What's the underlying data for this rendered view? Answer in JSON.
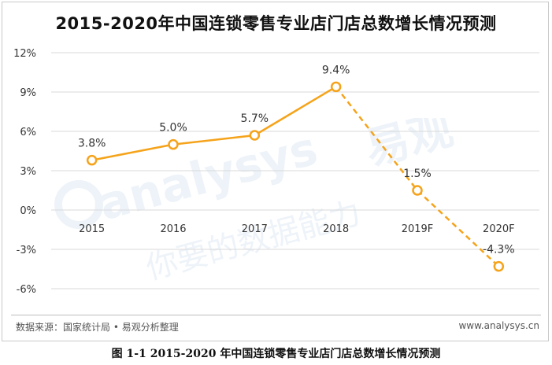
{
  "title": "2015-2020年中国连锁零售专业店门店总数增长情况预测",
  "source": "数据来源：国家统计局 • 易观分析整理",
  "site": "www.analysys.cn",
  "caption": "图 1-1  2015-2020 年中国连锁零售专业店门店总数增长情况预测",
  "watermark": {
    "brand_latin": "analysys",
    "brand_cn": "易观",
    "slogan": "你要的数据能力"
  },
  "colors": {
    "line": "#f5a31a",
    "grid": "#d9d9d9",
    "text": "#333333"
  },
  "chart_data": {
    "type": "line",
    "categories": [
      "2015",
      "2016",
      "2017",
      "2018",
      "2019F",
      "2020F"
    ],
    "values": [
      3.8,
      5.0,
      5.7,
      9.4,
      1.5,
      -4.3
    ],
    "data_labels": [
      "3.8%",
      "5.0%",
      "5.7%",
      "9.4%",
      "1.5%",
      "-4.3%"
    ],
    "forecast_from_index": 3,
    "y_ticks": [
      12,
      9,
      6,
      3,
      0,
      -3,
      -6
    ],
    "y_tick_labels": [
      "12%",
      "9%",
      "6%",
      "3%",
      "0%",
      "-3%",
      "-6%"
    ],
    "ylim": [
      -6,
      12
    ],
    "grid": true,
    "legend": "none",
    "xlabel": "",
    "ylabel": ""
  }
}
